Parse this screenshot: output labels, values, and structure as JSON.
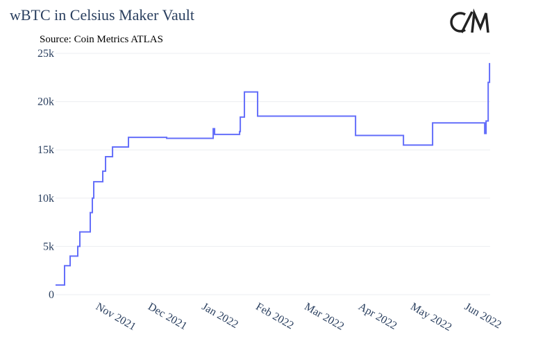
{
  "chart_data": {
    "type": "line",
    "title": "wBTC in Celsius Maker Vault",
    "subtitle": "Source: Coin Metrics ATLAS",
    "line_shape": "hv",
    "x": [
      2021.7705,
      2021.7847,
      2021.7935,
      2021.8055,
      2021.8088,
      2021.8252,
      2021.8285,
      2021.8307,
      2021.8449,
      2021.8493,
      2021.8603,
      2021.8854,
      2021.9456,
      2022.0189,
      2022.0211,
      2022.0605,
      2022.0616,
      2022.0681,
      2022.0889,
      2022.2432,
      2022.3187,
      2022.3646,
      2022.4467,
      2022.4489,
      2022.4522,
      2022.4543
    ],
    "series": [
      {
        "name": "wBTC",
        "color": "#636efa",
        "values": [
          1000,
          3000,
          4000,
          5000,
          6500,
          8500,
          10000,
          11700,
          12800,
          14300,
          15300,
          16300,
          16200,
          17200,
          16600,
          16900,
          18400,
          21000,
          18500,
          16500,
          15500,
          17800,
          16700,
          18000,
          22000,
          24000
        ]
      }
    ],
    "xlim": [
      2021.7705,
      2022.4553
    ],
    "xticks": [
      {
        "value": 2021.8329,
        "label": "Nov 2021"
      },
      {
        "value": 2021.9151,
        "label": "Dec 2021"
      },
      {
        "value": 2022.0,
        "label": "Jan 2022"
      },
      {
        "value": 2022.0849,
        "label": "Feb 2022"
      },
      {
        "value": 2022.1616,
        "label": "Mar 2022"
      },
      {
        "value": 2022.2466,
        "label": "Apr 2022"
      },
      {
        "value": 2022.3288,
        "label": "May 2022"
      },
      {
        "value": 2022.4137,
        "label": "Jun 2022"
      }
    ],
    "ylim": [
      0,
      25000
    ],
    "yticks": [
      0,
      {
        "value": 5000,
        "label": "5k"
      },
      {
        "value": 10000,
        "label": "10k"
      },
      {
        "value": 15000,
        "label": "15k"
      },
      {
        "value": 20000,
        "label": "20k"
      },
      {
        "value": 25000,
        "label": "25k"
      }
    ],
    "grid": true
  }
}
